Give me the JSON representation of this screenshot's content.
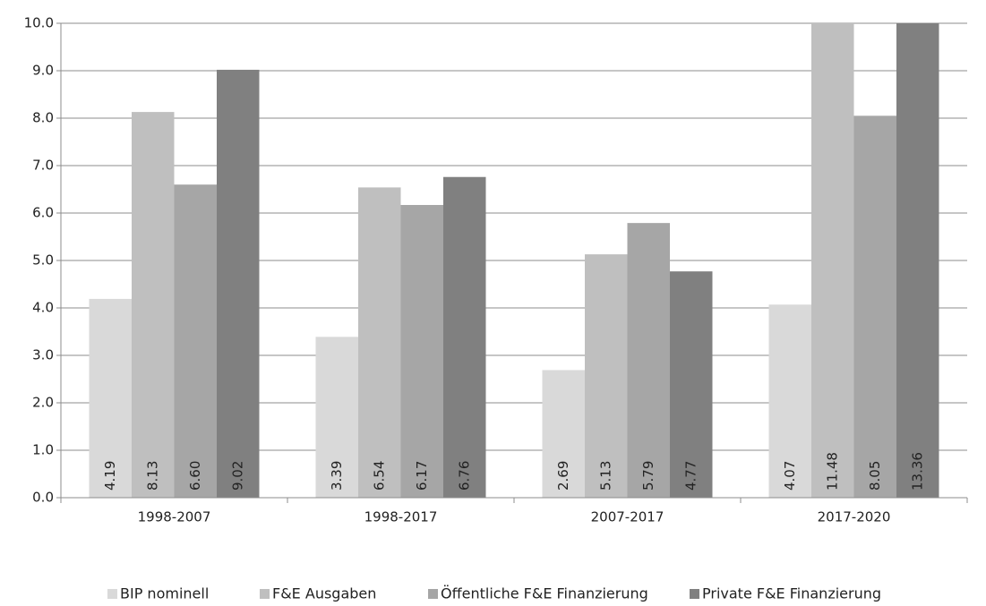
{
  "chart_data": {
    "type": "bar",
    "categories": [
      "1998-2007",
      "1998-2017",
      "2007-2017",
      "2017-2020"
    ],
    "series": [
      {
        "name": "BIP nominell",
        "color": "#d9d9d9",
        "values": [
          4.19,
          3.39,
          2.69,
          4.07
        ],
        "value_labels": [
          "4.19",
          "3.39",
          "2.69",
          "4.07"
        ]
      },
      {
        "name": "F&E Ausgaben",
        "color": "#bfbfbf",
        "values": [
          8.13,
          6.54,
          5.13,
          11.48
        ],
        "value_labels": [
          "8.13",
          "6.54",
          "5.13",
          "11.48"
        ]
      },
      {
        "name": "Öffentliche F&E Finanzierung",
        "color": "#a6a6a6",
        "values": [
          6.6,
          6.17,
          5.79,
          8.05
        ],
        "value_labels": [
          "6.60",
          "6.17",
          "5.79",
          "8.05"
        ]
      },
      {
        "name": "Private F&E Finanzierung",
        "color": "#808080",
        "values": [
          9.02,
          6.76,
          4.77,
          13.36
        ],
        "value_labels": [
          "9.02",
          "6.76",
          "4.77",
          "13.36"
        ]
      }
    ],
    "ylim": [
      0,
      10
    ],
    "yticks": [
      {
        "value": 0,
        "label": "0.0"
      },
      {
        "value": 1,
        "label": "1.0"
      },
      {
        "value": 2,
        "label": "2.0"
      },
      {
        "value": 3,
        "label": "3.0"
      },
      {
        "value": 4,
        "label": "4.0"
      },
      {
        "value": 5,
        "label": "5.0"
      },
      {
        "value": 6,
        "label": "6.0"
      },
      {
        "value": 7,
        "label": "7.0"
      },
      {
        "value": 8,
        "label": "8.0"
      },
      {
        "value": 9,
        "label": "9.0"
      },
      {
        "value": 10,
        "label": "10.0"
      }
    ],
    "grid": true,
    "legend": "bottom"
  }
}
